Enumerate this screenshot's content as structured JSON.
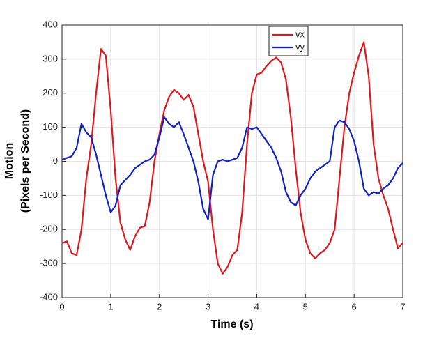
{
  "chart_data": {
    "type": "line",
    "xlabel": "Time (s)",
    "ylabel": [
      "Motion",
      "(Pixels per Second)"
    ],
    "x": [
      0,
      0.1,
      0.2,
      0.3,
      0.4,
      0.5,
      0.6,
      0.7,
      0.8,
      0.9,
      1,
      1.1,
      1.2,
      1.3,
      1.4,
      1.5,
      1.6,
      1.7,
      1.8,
      1.9,
      2,
      2.1,
      2.2,
      2.3,
      2.4,
      2.5,
      2.6,
      2.7,
      2.8,
      2.9,
      3,
      3.1,
      3.2,
      3.3,
      3.4,
      3.5,
      3.6,
      3.7,
      3.8,
      3.9,
      4,
      4.1,
      4.2,
      4.3,
      4.4,
      4.5,
      4.6,
      4.7,
      4.8,
      4.9,
      5,
      5.1,
      5.2,
      5.3,
      5.4,
      5.5,
      5.6,
      5.7,
      5.8,
      5.9,
      6,
      6.1,
      6.2,
      6.3,
      6.4,
      6.5,
      6.6,
      6.7,
      6.8,
      6.9,
      7
    ],
    "series": [
      {
        "name": "vx",
        "color": "#e0161c",
        "values": [
          -240,
          -235,
          -270,
          -275,
          -200,
          -50,
          50,
          200,
          330,
          310,
          150,
          -50,
          -180,
          -230,
          -260,
          -220,
          -195,
          -190,
          -120,
          0,
          80,
          150,
          190,
          210,
          200,
          180,
          195,
          160,
          80,
          0,
          -60,
          -200,
          -300,
          -330,
          -310,
          -275,
          -260,
          -150,
          50,
          200,
          255,
          260,
          280,
          295,
          305,
          290,
          240,
          130,
          -20,
          -150,
          -230,
          -270,
          -285,
          -270,
          -260,
          -240,
          -200,
          -50,
          100,
          200,
          260,
          310,
          350,
          250,
          50,
          -50,
          -100,
          -140,
          -200,
          -255,
          -240
        ]
      },
      {
        "name": "vy",
        "color": "#1020c8",
        "values": [
          5,
          10,
          15,
          40,
          110,
          85,
          70,
          20,
          -40,
          -100,
          -150,
          -130,
          -70,
          -55,
          -40,
          -20,
          -10,
          0,
          5,
          20,
          70,
          130,
          110,
          100,
          115,
          80,
          40,
          0,
          -60,
          -140,
          -170,
          -40,
          0,
          5,
          0,
          5,
          10,
          40,
          100,
          95,
          100,
          80,
          60,
          40,
          10,
          -30,
          -90,
          -120,
          -130,
          -100,
          -80,
          -50,
          -30,
          -20,
          -10,
          0,
          100,
          120,
          115,
          95,
          60,
          0,
          -80,
          -100,
          -90,
          -95,
          -80,
          -70,
          -50,
          -20,
          -5
        ]
      }
    ],
    "xlim": [
      0,
      7
    ],
    "xticks": [
      0,
      1,
      2,
      3,
      4,
      5,
      6,
      7
    ],
    "ylim": [
      -400,
      400
    ],
    "yticks": [
      -400,
      -300,
      -200,
      -100,
      0,
      100,
      200,
      300,
      400
    ],
    "grid": true,
    "legend": "northeast"
  }
}
